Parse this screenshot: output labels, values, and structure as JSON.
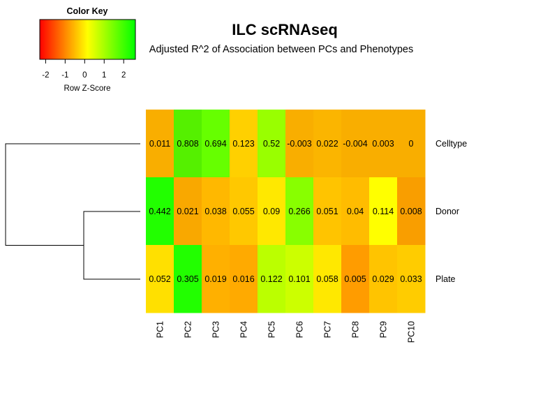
{
  "chart_data": {
    "type": "heatmap",
    "title": "ILC scRNAseq",
    "subtitle": "Adjusted R^2 of Association between PCs and Phenotypes",
    "columns": [
      "PC1",
      "PC2",
      "PC3",
      "PC4",
      "PC5",
      "PC6",
      "PC7",
      "PC8",
      "PC9",
      "PC10"
    ],
    "rows": [
      "Celltype",
      "Donor",
      "Plate"
    ],
    "values": [
      [
        0.011,
        0.808,
        0.694,
        0.123,
        0.52,
        -0.003,
        0.022,
        -0.004,
        0.003,
        0
      ],
      [
        0.442,
        0.021,
        0.038,
        0.055,
        0.09,
        0.266,
        0.051,
        0.04,
        0.114,
        0.008
      ],
      [
        0.052,
        0.305,
        0.019,
        0.016,
        0.122,
        0.101,
        0.058,
        0.005,
        0.029,
        0.033
      ]
    ],
    "cell_colors": [
      [
        "#F9AE00",
        "#55F000",
        "#66FF00",
        "#FFD000",
        "#99FF00",
        "#F9AE00",
        "#FBB500",
        "#F9AE00",
        "#F9AE00",
        "#F9AE00"
      ],
      [
        "#22FF00",
        "#F9A800",
        "#FFB800",
        "#FFC800",
        "#FFE800",
        "#88FF00",
        "#FFC400",
        "#FFBC00",
        "#FFFF00",
        "#F99E00"
      ],
      [
        "#FFE000",
        "#22FF00",
        "#FFB000",
        "#FFAA00",
        "#BBFF00",
        "#CCFF00",
        "#FFE800",
        "#FF9C00",
        "#FFC400",
        "#FFCC00"
      ]
    ],
    "color_key": {
      "title": "Color Key",
      "xlabel": "Row Z-Score",
      "ticks": [
        "-2",
        "-1",
        "0",
        "1",
        "2"
      ],
      "range": [
        -2.3,
        2.6
      ],
      "colors": [
        "#FF0000",
        "#FFFF00",
        "#00FF00"
      ]
    },
    "dendrogram": "rows: Donor and Plate join first, then Celltype"
  }
}
